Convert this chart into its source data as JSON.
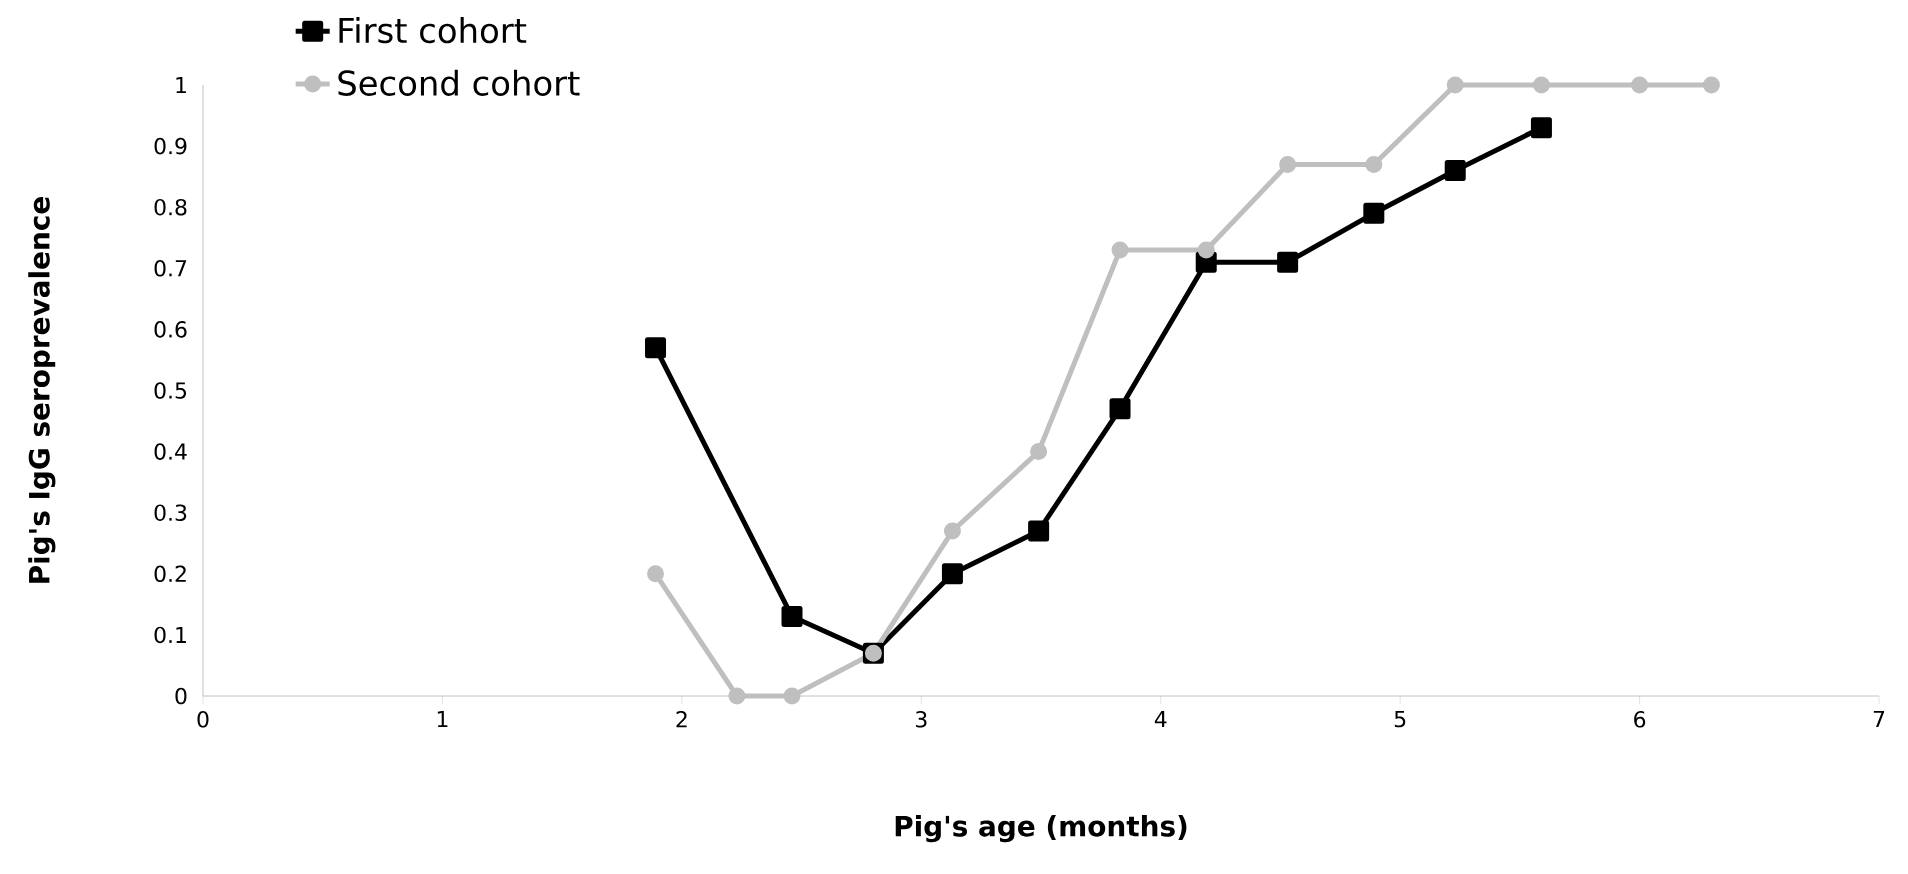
{
  "chart_data": {
    "type": "line",
    "xlabel": "Pig's age (months)",
    "ylabel": "Pig's IgG seroprevalence",
    "xlim": [
      0,
      7
    ],
    "xticks": [
      0,
      1,
      2,
      3,
      4,
      5,
      6,
      7
    ],
    "ylim": [
      0,
      1
    ],
    "yticks": [
      0,
      0.1,
      0.2,
      0.3,
      0.4,
      0.5,
      0.6,
      0.7,
      0.8,
      0.9,
      1
    ],
    "grid": false,
    "legend": "top left",
    "line_style": "solid",
    "series": [
      {
        "name": "First cohort",
        "color": "#000000",
        "marker": "square",
        "x": [
          1.89,
          2.46,
          2.8,
          3.13,
          3.49,
          3.83,
          4.19,
          4.53,
          4.89,
          5.23,
          5.59
        ],
        "values": [
          0.57,
          0.13,
          0.07,
          0.2,
          0.27,
          0.47,
          0.71,
          0.71,
          0.79,
          0.86,
          0.93
        ]
      },
      {
        "name": "Second cohort",
        "color": "#bfbfbf",
        "marker": "circle",
        "x": [
          1.89,
          2.23,
          2.46,
          2.8,
          3.13,
          3.49,
          3.83,
          4.19,
          4.53,
          4.89,
          5.23,
          5.59,
          6.0,
          6.3
        ],
        "values": [
          0.2,
          0,
          0,
          0.07,
          0.27,
          0.4,
          0.73,
          0.73,
          0.87,
          0.87,
          1,
          1,
          1,
          1
        ]
      }
    ]
  }
}
